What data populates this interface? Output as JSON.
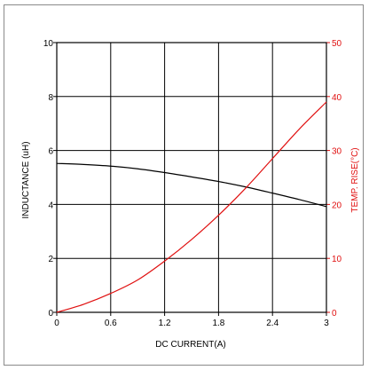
{
  "chart_data": {
    "type": "line",
    "title": "",
    "xlabel": "DC CURRENT(A)",
    "ylabel_left": "INDUCTANCE (uH)",
    "ylabel_right": "TEMP. RISE(°C)",
    "x_ticks": [
      "0",
      "0.6",
      "1.2",
      "1.8",
      "2.4",
      "3"
    ],
    "y_left_ticks": [
      "0",
      "2",
      "4",
      "6",
      "8",
      "10"
    ],
    "y_right_ticks": [
      "0",
      "10",
      "20",
      "30",
      "40",
      "50"
    ],
    "xlim": [
      0,
      3
    ],
    "ylim_left": [
      0,
      10
    ],
    "ylim_right": [
      0,
      50
    ],
    "grid": true,
    "colors": {
      "inductance": "#000000",
      "temp_rise": "#e01010",
      "right_axis": "#e01010",
      "grid": "#000000"
    },
    "series": [
      {
        "axis": "left",
        "x": [
          0,
          0.3,
          0.6,
          0.9,
          1.2,
          1.5,
          1.8,
          2.1,
          2.4,
          2.7,
          3.0
        ],
        "y": [
          5.52,
          5.48,
          5.42,
          5.32,
          5.18,
          5.02,
          4.85,
          4.65,
          4.42,
          4.18,
          3.92
        ]
      },
      {
        "axis": "right",
        "x": [
          0,
          0.3,
          0.6,
          0.9,
          1.2,
          1.5,
          1.8,
          2.1,
          2.4,
          2.7,
          3.0
        ],
        "y": [
          0,
          1.5,
          3.5,
          6.0,
          9.5,
          13.5,
          18.0,
          23.0,
          28.5,
          34.0,
          39.0
        ]
      }
    ]
  }
}
